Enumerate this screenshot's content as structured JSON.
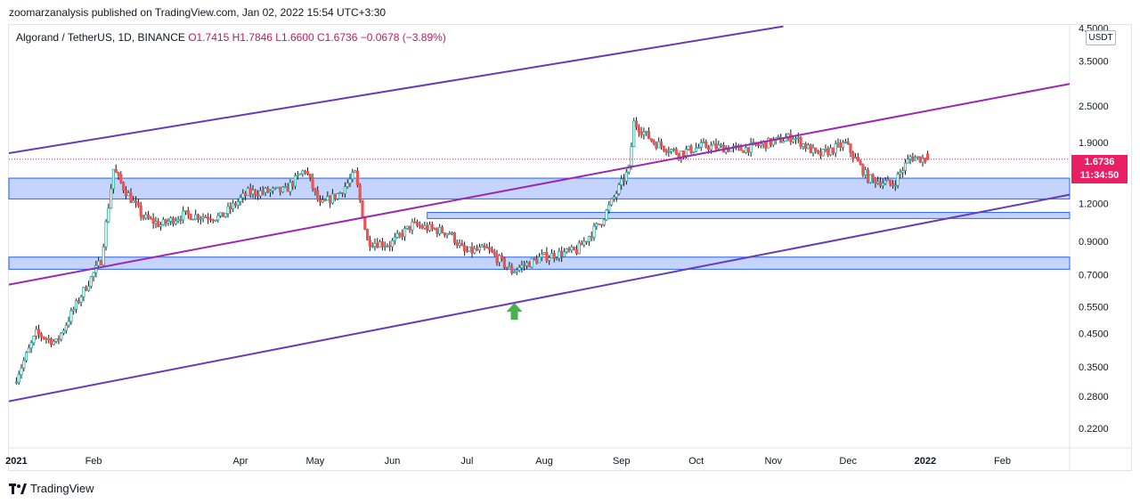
{
  "header": {
    "publisher": "zoomarzanalysis published on TradingView.com, Jan 02, 2022 15:54 UTC+3:30"
  },
  "legend": {
    "symbol": "Algorand / TetherUS, 1D, BINANCE",
    "ohlc": "O1.7415  H1.7846  L1.6600  C1.6736  −0.0678 (−3.89%)"
  },
  "currency_button": "USDT",
  "price_tag": {
    "price": "1.6736",
    "countdown": "11:34:50"
  },
  "footer": {
    "logo_text": "TradingView"
  },
  "colors": {
    "up": "#26a69a",
    "down": "#ef5350",
    "body_up": "#ffffff",
    "wick": "#131722",
    "zone_fill": "#bbcdfb",
    "zone_stroke": "#2962ff",
    "channel": "#673ab7",
    "midline": "#9c27b0",
    "arrow": "#4caf50",
    "price_tag": "#e91e63"
  },
  "chart_data": {
    "type": "candlestick",
    "title": "Algorand / TetherUS, 1D, BINANCE",
    "scale": "log",
    "ylim": [
      0.19,
      4.6
    ],
    "x_range": [
      "2020-12-29",
      "2022-02-28"
    ],
    "y_tick_labels": [
      "4.5000",
      "3.5000",
      "2.5000",
      "1.9000",
      "1.2000",
      "0.9000",
      "0.7000",
      "0.5500",
      "0.4500",
      "0.3500",
      "0.2800",
      "0.2200"
    ],
    "y_tick_values": [
      4.5,
      3.5,
      2.5,
      1.9,
      1.2,
      0.9,
      0.7,
      0.55,
      0.45,
      0.35,
      0.28,
      0.22
    ],
    "x_tick_labels": [
      "2021",
      "Feb",
      "Apr",
      "May",
      "Jun",
      "Jul",
      "Aug",
      "Sep",
      "Oct",
      "Nov",
      "Dec",
      "2022",
      "Feb"
    ],
    "x_tick_dates": [
      "2021-01-01",
      "2021-02-01",
      "2021-04-01",
      "2021-05-01",
      "2021-06-01",
      "2021-07-01",
      "2021-08-01",
      "2021-09-01",
      "2021-10-01",
      "2021-11-01",
      "2021-12-01",
      "2022-01-01",
      "2022-02-01"
    ],
    "price_anchors": [
      [
        "2021-01-01",
        0.31
      ],
      [
        "2021-01-10",
        0.45
      ],
      [
        "2021-01-18",
        0.42
      ],
      [
        "2021-01-28",
        0.6
      ],
      [
        "2021-02-05",
        0.78
      ],
      [
        "2021-02-10",
        1.55
      ],
      [
        "2021-02-14",
        1.35
      ],
      [
        "2021-02-22",
        1.08
      ],
      [
        "2021-03-01",
        1.02
      ],
      [
        "2021-03-10",
        1.1
      ],
      [
        "2021-03-25",
        1.08
      ],
      [
        "2021-04-05",
        1.3
      ],
      [
        "2021-04-20",
        1.32
      ],
      [
        "2021-04-28",
        1.55
      ],
      [
        "2021-05-04",
        1.18
      ],
      [
        "2021-05-12",
        1.3
      ],
      [
        "2021-05-18",
        1.5
      ],
      [
        "2021-05-23",
        0.9
      ],
      [
        "2021-06-01",
        0.88
      ],
      [
        "2021-06-10",
        1.02
      ],
      [
        "2021-06-25",
        0.96
      ],
      [
        "2021-07-01",
        0.83
      ],
      [
        "2021-07-10",
        0.85
      ],
      [
        "2021-07-20",
        0.72
      ],
      [
        "2021-08-01",
        0.8
      ],
      [
        "2021-08-15",
        0.84
      ],
      [
        "2021-08-25",
        1.05
      ],
      [
        "2021-09-05",
        1.55
      ],
      [
        "2021-09-07",
        2.2
      ],
      [
        "2021-09-15",
        1.9
      ],
      [
        "2021-09-25",
        1.75
      ],
      [
        "2021-10-05",
        1.85
      ],
      [
        "2021-10-20",
        1.8
      ],
      [
        "2021-11-01",
        1.9
      ],
      [
        "2021-11-10",
        1.98
      ],
      [
        "2021-11-20",
        1.72
      ],
      [
        "2021-12-01",
        1.88
      ],
      [
        "2021-12-10",
        1.45
      ],
      [
        "2021-12-20",
        1.38
      ],
      [
        "2021-12-27",
        1.7
      ],
      [
        "2022-01-02",
        1.6736
      ]
    ],
    "ohlc_last": {
      "open": 1.7415,
      "high": 1.7846,
      "low": 1.66,
      "close": 1.6736,
      "change": -0.0678,
      "change_pct": -3.89
    },
    "support_resistance_zones": [
      {
        "from": "2020-12-29",
        "to": "2022-02-28",
        "low": 1.24,
        "high": 1.45
      },
      {
        "from": "2021-06-15",
        "to": "2022-02-28",
        "low": 1.07,
        "high": 1.12
      },
      {
        "from": "2020-12-29",
        "to": "2022-02-28",
        "low": 0.73,
        "high": 0.8
      }
    ],
    "trendlines": [
      {
        "name": "channel-upper",
        "from": [
          "2020-12-29",
          1.75
        ],
        "to": [
          "2021-11-05",
          4.55
        ]
      },
      {
        "name": "channel-middle",
        "from": [
          "2020-12-29",
          0.65
        ],
        "to": [
          "2022-02-28",
          2.95
        ]
      },
      {
        "name": "channel-lower",
        "from": [
          "2020-12-29",
          0.27
        ],
        "to": [
          "2022-02-28",
          1.28
        ]
      }
    ],
    "annotations": [
      {
        "type": "arrow-up",
        "date": "2021-07-20",
        "price": 0.53
      }
    ]
  }
}
